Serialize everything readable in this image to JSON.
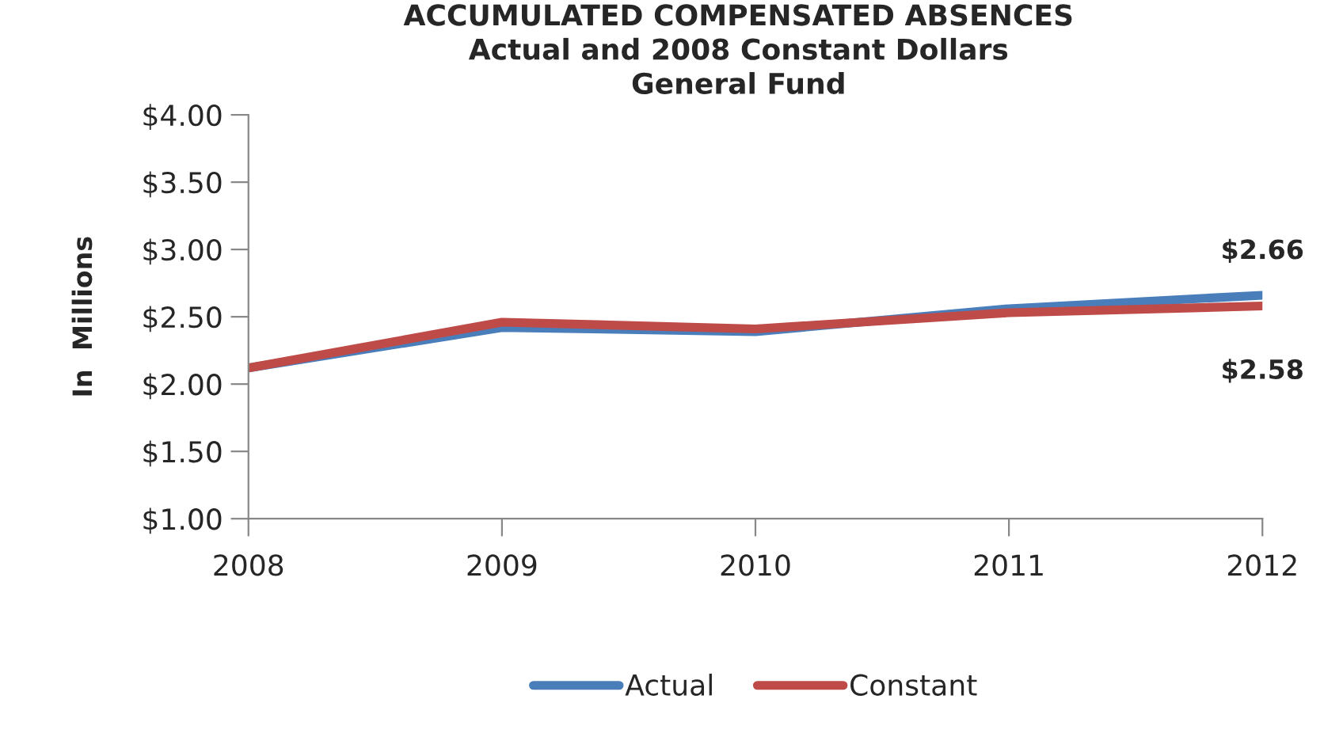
{
  "chart_data": {
    "type": "line",
    "title": "ACCUMULATED COMPENSATED ABSENCES\nActual and 2008 Constant Dollars\nGeneral Fund",
    "ylabel": "In  Millions",
    "categories": [
      "2008",
      "2009",
      "2010",
      "2011",
      "2012"
    ],
    "series": [
      {
        "name": "Actual",
        "color": "#4a7ebb",
        "values": [
          2.12,
          2.42,
          2.39,
          2.56,
          2.66
        ],
        "value_labels": [
          null,
          null,
          null,
          null,
          "$2.66"
        ]
      },
      {
        "name": "Constant",
        "color": "#be4b48",
        "values": [
          2.12,
          2.46,
          2.41,
          2.53,
          2.58
        ],
        "value_labels": [
          null,
          null,
          null,
          null,
          "$2.58"
        ]
      }
    ],
    "ylim": [
      1.0,
      4.0
    ],
    "yticks": [
      {
        "value": 1.0,
        "label": "$1.00"
      },
      {
        "value": 1.5,
        "label": "$1.50"
      },
      {
        "value": 2.0,
        "label": "$2.00"
      },
      {
        "value": 2.5,
        "label": "$2.50"
      },
      {
        "value": 3.0,
        "label": "$3.00"
      },
      {
        "value": 3.5,
        "label": "$3.50"
      },
      {
        "value": 4.0,
        "label": "$4.00"
      }
    ],
    "grid": false,
    "legend": "bottom",
    "marker": "none",
    "line_style": "solid"
  }
}
